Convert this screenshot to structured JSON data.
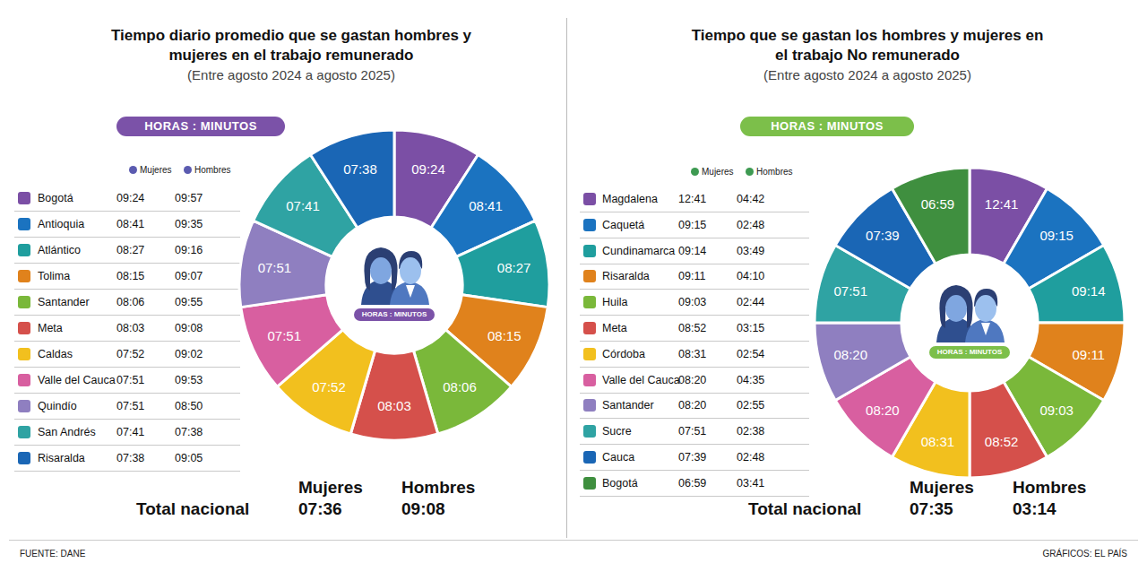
{
  "chart_data": [
    {
      "type": "pie",
      "title": "Tiempo diario promedio que se gastan hombres y mujeres en el trabajo remunerado",
      "subtitle": "(Entre agosto 2024 a agosto 2025)",
      "unit_badge": "HORAS : MINUTOS",
      "color": "#7b52a8",
      "data_labels": true,
      "categories": [
        "Bogotá",
        "Antioquia",
        "Atlántico",
        "Tolima",
        "Santander",
        "Meta",
        "Caldas",
        "Valle del Cauca",
        "Quindío",
        "San Andrés",
        "Risaralda"
      ],
      "colors": [
        "#7b4fa5",
        "#1b73c0",
        "#1f9e9e",
        "#e0821c",
        "#7ab83a",
        "#d5504b",
        "#f2c01e",
        "#d85fa0",
        "#8f7fc0",
        "#2fa3a3",
        "#1a66b5"
      ],
      "series": [
        {
          "name": "Mujeres",
          "values": [
            "09:24",
            "08:41",
            "08:27",
            "08:15",
            "08:06",
            "08:03",
            "07:52",
            "07:51",
            "07:51",
            "07:41",
            "07:38"
          ],
          "total": "07:36"
        },
        {
          "name": "Hombres",
          "values": [
            "09:57",
            "09:35",
            "09:16",
            "09:07",
            "09:55",
            "09:08",
            "09:02",
            "09:53",
            "08:50",
            "07:38",
            "09:05"
          ],
          "total": "09:08"
        }
      ],
      "total_label": "Total nacional"
    },
    {
      "type": "pie",
      "title": "Tiempo que se gastan los hombres y mujeres en el trabajo No remunerado",
      "subtitle": "(Entre agosto 2024 a agosto 2025)",
      "unit_badge": "HORAS : MINUTOS",
      "color": "#7cbf4a",
      "data_labels": true,
      "categories": [
        "Magdalena",
        "Caquetá",
        "Cundinamarca",
        "Risaralda",
        "Huila",
        "Meta",
        "Córdoba",
        "Valle del Cauca",
        "Santander",
        "Sucre",
        "Cauca",
        "Bogotá"
      ],
      "colors": [
        "#7b4fa5",
        "#1b73c0",
        "#1f9e9e",
        "#e0821c",
        "#7ab83a",
        "#d5504b",
        "#f2c01e",
        "#d85fa0",
        "#8f7fc0",
        "#2fa3a3",
        "#1a66b5",
        "#3f8f3f"
      ],
      "series": [
        {
          "name": "Mujeres",
          "values": [
            "12:41",
            "09:15",
            "09:14",
            "09:11",
            "09:03",
            "08:52",
            "08:31",
            "08:20",
            "08:20",
            "07:51",
            "07:39",
            "06:59"
          ],
          "total": "07:35"
        },
        {
          "name": "Hombres",
          "values": [
            "04:42",
            "02:48",
            "03:49",
            "04:10",
            "02:44",
            "03:15",
            "02:54",
            "04:35",
            "02:55",
            "02:38",
            "02:48",
            "03:41"
          ],
          "total": "03:14"
        }
      ],
      "total_label": "Total nacional"
    }
  ],
  "source": "FUENTE: DANE",
  "credit": "GRÁFICOS: EL PAÍS"
}
